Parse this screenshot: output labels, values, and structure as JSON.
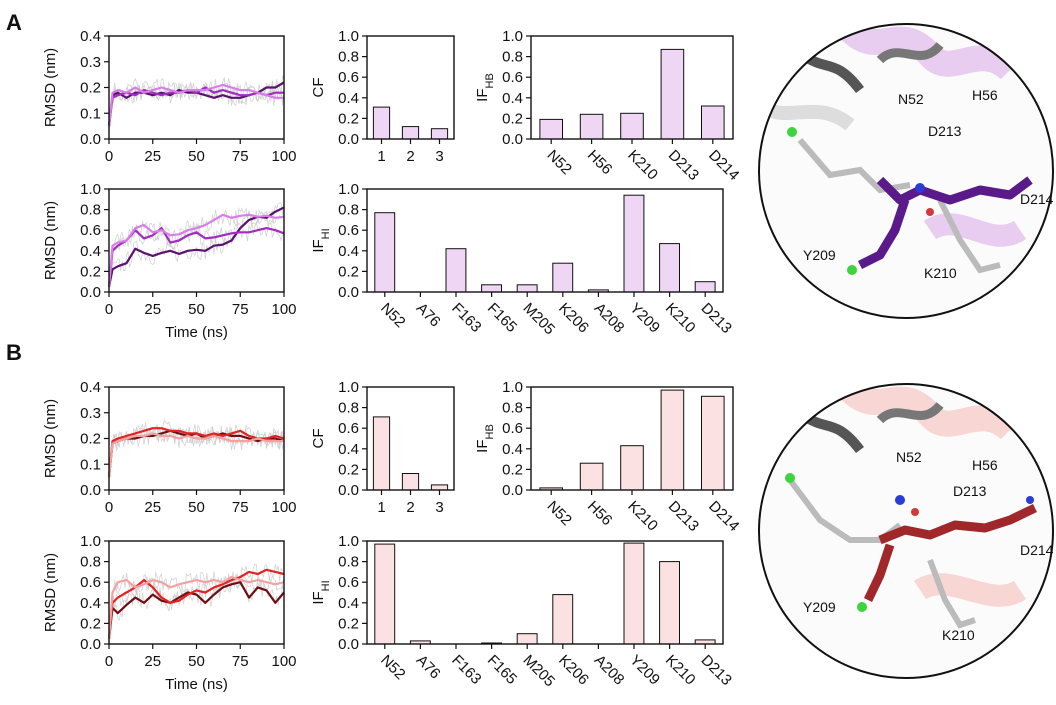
{
  "panels": [
    {
      "letter": "A"
    },
    {
      "letter": "B"
    }
  ],
  "chart_data": [
    {
      "id": "A-rmsd-top",
      "type": "line",
      "panel": "A",
      "xlabel": "",
      "ylabel": "RMSD (nm)",
      "xlim": [
        0,
        100
      ],
      "ylim": [
        0,
        0.4
      ],
      "xticks": [
        0,
        25,
        50,
        75,
        100
      ],
      "yticks": [
        0.0,
        0.1,
        0.2,
        0.3,
        0.4
      ],
      "x": [
        0,
        2,
        5,
        10,
        15,
        20,
        25,
        30,
        35,
        40,
        45,
        50,
        55,
        60,
        65,
        70,
        75,
        80,
        85,
        90,
        95,
        100
      ],
      "series": [
        {
          "color": "#5c1070",
          "values": [
            0.05,
            0.17,
            0.18,
            0.16,
            0.18,
            0.18,
            0.17,
            0.18,
            0.17,
            0.19,
            0.18,
            0.18,
            0.17,
            0.16,
            0.17,
            0.16,
            0.16,
            0.17,
            0.18,
            0.2,
            0.2,
            0.22
          ]
        },
        {
          "color": "#a12cbf",
          "values": [
            0.05,
            0.16,
            0.17,
            0.18,
            0.17,
            0.19,
            0.18,
            0.17,
            0.18,
            0.18,
            0.19,
            0.18,
            0.2,
            0.18,
            0.19,
            0.18,
            0.17,
            0.17,
            0.18,
            0.17,
            0.18,
            0.18
          ]
        },
        {
          "color": "#d77ee8",
          "values": [
            0.05,
            0.18,
            0.19,
            0.18,
            0.2,
            0.18,
            0.19,
            0.2,
            0.19,
            0.18,
            0.19,
            0.19,
            0.19,
            0.2,
            0.21,
            0.2,
            0.19,
            0.19,
            0.18,
            0.17,
            0.16,
            0.16
          ]
        }
      ]
    },
    {
      "id": "A-cf",
      "type": "bar",
      "panel": "A",
      "ylabel": "CF",
      "ylim": [
        0,
        1
      ],
      "yticks": [
        0.0,
        0.2,
        0.4,
        0.6,
        0.8,
        1.0
      ],
      "categories": [
        "1",
        "2",
        "3"
      ],
      "values": [
        0.31,
        0.12,
        0.1
      ],
      "bar_color": "#efd6f5"
    },
    {
      "id": "A-ifhb",
      "type": "bar",
      "panel": "A",
      "ylabel": "IF",
      "ylabel_sub": "HB",
      "ylim": [
        0,
        1
      ],
      "yticks": [
        0.0,
        0.2,
        0.4,
        0.6,
        0.8,
        1.0
      ],
      "categories": [
        "N52",
        "H56",
        "K210",
        "D213",
        "D214"
      ],
      "values": [
        0.19,
        0.24,
        0.25,
        0.87,
        0.32
      ],
      "bar_color": "#efd6f5"
    },
    {
      "id": "A-rmsd-bottom",
      "type": "line",
      "panel": "A",
      "xlabel": "Time (ns)",
      "ylabel": "RMSD (nm)",
      "xlim": [
        0,
        100
      ],
      "ylim": [
        0,
        1.0
      ],
      "xticks": [
        0,
        25,
        50,
        75,
        100
      ],
      "yticks": [
        0.0,
        0.2,
        0.4,
        0.6,
        0.8,
        1.0
      ],
      "x": [
        0,
        2,
        5,
        10,
        15,
        20,
        25,
        30,
        35,
        40,
        45,
        50,
        55,
        60,
        65,
        70,
        75,
        80,
        85,
        90,
        95,
        100
      ],
      "series": [
        {
          "color": "#5c1070",
          "values": [
            0.05,
            0.22,
            0.25,
            0.28,
            0.42,
            0.38,
            0.35,
            0.38,
            0.4,
            0.37,
            0.4,
            0.41,
            0.4,
            0.45,
            0.46,
            0.5,
            0.62,
            0.7,
            0.73,
            0.72,
            0.78,
            0.82
          ]
        },
        {
          "color": "#a12cbf",
          "values": [
            0.05,
            0.4,
            0.45,
            0.5,
            0.6,
            0.52,
            0.55,
            0.62,
            0.48,
            0.5,
            0.55,
            0.58,
            0.52,
            0.53,
            0.55,
            0.57,
            0.58,
            0.58,
            0.6,
            0.62,
            0.6,
            0.57
          ]
        },
        {
          "color": "#d77ee8",
          "values": [
            0.05,
            0.45,
            0.48,
            0.5,
            0.62,
            0.65,
            0.58,
            0.6,
            0.55,
            0.56,
            0.6,
            0.62,
            0.65,
            0.7,
            0.75,
            0.72,
            0.74,
            0.75,
            0.73,
            0.74,
            0.72,
            0.73
          ]
        }
      ]
    },
    {
      "id": "A-ifhi",
      "type": "bar",
      "panel": "A",
      "ylabel": "IF",
      "ylabel_sub": "HI",
      "ylim": [
        0,
        1
      ],
      "yticks": [
        0.0,
        0.2,
        0.4,
        0.6,
        0.8,
        1.0
      ],
      "categories": [
        "N52",
        "A76",
        "F163",
        "F165",
        "M205",
        "K206",
        "A208",
        "Y209",
        "K210",
        "D213"
      ],
      "values": [
        0.77,
        0.0,
        0.42,
        0.07,
        0.07,
        0.28,
        0.02,
        0.94,
        0.47,
        0.1
      ],
      "bar_color": "#efd6f5"
    },
    {
      "id": "B-rmsd-top",
      "type": "line",
      "panel": "B",
      "xlabel": "",
      "ylabel": "RMSD (nm)",
      "xlim": [
        0,
        100
      ],
      "ylim": [
        0,
        0.4
      ],
      "xticks": [
        0,
        25,
        50,
        75,
        100
      ],
      "yticks": [
        0.0,
        0.1,
        0.2,
        0.3,
        0.4
      ],
      "x": [
        0,
        2,
        5,
        10,
        15,
        20,
        25,
        30,
        35,
        40,
        45,
        50,
        55,
        60,
        65,
        70,
        75,
        80,
        85,
        90,
        95,
        100
      ],
      "series": [
        {
          "color": "#6e0f14",
          "values": [
            0.05,
            0.18,
            0.19,
            0.2,
            0.2,
            0.21,
            0.21,
            0.22,
            0.23,
            0.22,
            0.21,
            0.22,
            0.2,
            0.21,
            0.22,
            0.21,
            0.21,
            0.2,
            0.19,
            0.2,
            0.2,
            0.19
          ]
        },
        {
          "color": "#e02424",
          "values": [
            0.05,
            0.19,
            0.2,
            0.21,
            0.22,
            0.23,
            0.24,
            0.24,
            0.23,
            0.23,
            0.22,
            0.22,
            0.21,
            0.22,
            0.21,
            0.22,
            0.23,
            0.21,
            0.2,
            0.2,
            0.21,
            0.2
          ]
        },
        {
          "color": "#f3a1a1",
          "values": [
            0.05,
            0.18,
            0.19,
            0.2,
            0.21,
            0.21,
            0.22,
            0.21,
            0.21,
            0.2,
            0.21,
            0.2,
            0.2,
            0.21,
            0.2,
            0.19,
            0.19,
            0.19,
            0.2,
            0.19,
            0.19,
            0.19
          ]
        }
      ]
    },
    {
      "id": "B-cf",
      "type": "bar",
      "panel": "B",
      "ylabel": "CF",
      "ylim": [
        0,
        1
      ],
      "yticks": [
        0.0,
        0.2,
        0.4,
        0.6,
        0.8,
        1.0
      ],
      "categories": [
        "1",
        "2",
        "3"
      ],
      "values": [
        0.71,
        0.16,
        0.05
      ],
      "bar_color": "#fbe1e1"
    },
    {
      "id": "B-ifhb",
      "type": "bar",
      "panel": "B",
      "ylabel": "IF",
      "ylabel_sub": "HB",
      "ylim": [
        0,
        1
      ],
      "yticks": [
        0.0,
        0.2,
        0.4,
        0.6,
        0.8,
        1.0
      ],
      "categories": [
        "N52",
        "H56",
        "K210",
        "D213",
        "D214"
      ],
      "values": [
        0.02,
        0.26,
        0.43,
        0.97,
        0.91
      ],
      "bar_color": "#fbe1e1"
    },
    {
      "id": "B-rmsd-bottom",
      "type": "line",
      "panel": "B",
      "xlabel": "Time (ns)",
      "ylabel": "RMSD (nm)",
      "xlim": [
        0,
        100
      ],
      "ylim": [
        0,
        1.0
      ],
      "xticks": [
        0,
        25,
        50,
        75,
        100
      ],
      "yticks": [
        0.0,
        0.2,
        0.4,
        0.6,
        0.8,
        1.0
      ],
      "x": [
        0,
        2,
        5,
        10,
        15,
        20,
        25,
        30,
        35,
        40,
        45,
        50,
        55,
        60,
        65,
        70,
        75,
        80,
        85,
        90,
        95,
        100
      ],
      "series": [
        {
          "color": "#6e0f14",
          "values": [
            0.05,
            0.35,
            0.3,
            0.38,
            0.45,
            0.4,
            0.48,
            0.42,
            0.4,
            0.45,
            0.5,
            0.48,
            0.4,
            0.48,
            0.55,
            0.58,
            0.6,
            0.45,
            0.55,
            0.52,
            0.4,
            0.5
          ]
        },
        {
          "color": "#e02424",
          "values": [
            0.05,
            0.4,
            0.45,
            0.5,
            0.55,
            0.62,
            0.55,
            0.45,
            0.4,
            0.42,
            0.48,
            0.52,
            0.5,
            0.55,
            0.58,
            0.62,
            0.65,
            0.7,
            0.68,
            0.72,
            0.7,
            0.68
          ]
        },
        {
          "color": "#f3a1a1",
          "values": [
            0.05,
            0.5,
            0.6,
            0.62,
            0.55,
            0.58,
            0.62,
            0.6,
            0.55,
            0.58,
            0.6,
            0.62,
            0.6,
            0.62,
            0.6,
            0.65,
            0.62,
            0.6,
            0.62,
            0.6,
            0.58,
            0.6
          ]
        }
      ]
    },
    {
      "id": "B-ifhi",
      "type": "bar",
      "panel": "B",
      "ylabel": "IF",
      "ylabel_sub": "HI",
      "ylim": [
        0,
        1
      ],
      "yticks": [
        0.0,
        0.2,
        0.4,
        0.6,
        0.8,
        1.0
      ],
      "categories": [
        "N52",
        "A76",
        "F163",
        "F165",
        "M205",
        "K206",
        "A208",
        "Y209",
        "K210",
        "D213"
      ],
      "values": [
        0.97,
        0.03,
        0.0,
        0.01,
        0.1,
        0.48,
        0.0,
        0.98,
        0.8,
        0.04
      ],
      "bar_color": "#fbe1e1"
    }
  ],
  "structures": [
    {
      "panel": "A",
      "ligand_color": "#5b1a8a",
      "ribbon_tint": "#e8cdf0",
      "labels": [
        "N52",
        "H56",
        "D213",
        "D214",
        "Y209",
        "K210"
      ]
    },
    {
      "panel": "B",
      "ligand_color": "#a0282a",
      "ribbon_tint": "#f7d6d3",
      "labels": [
        "H56",
        "N52",
        "D213",
        "D214",
        "Y209",
        "K210"
      ]
    }
  ]
}
